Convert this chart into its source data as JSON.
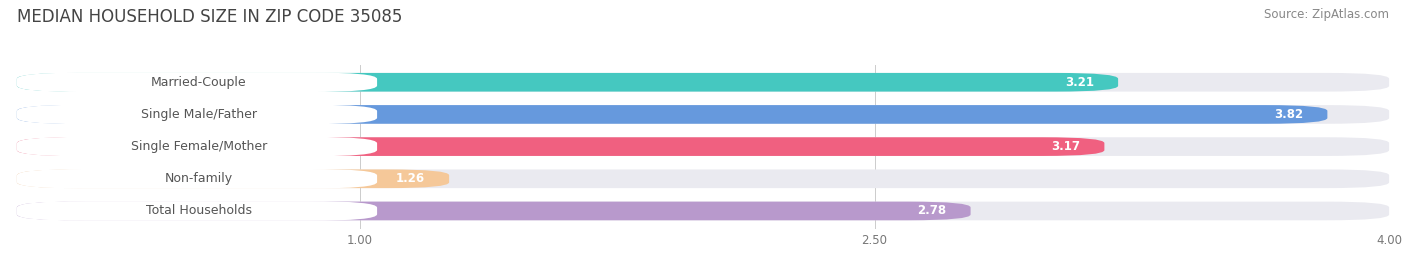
{
  "title": "MEDIAN HOUSEHOLD SIZE IN ZIP CODE 35085",
  "source": "Source: ZipAtlas.com",
  "categories": [
    "Married-Couple",
    "Single Male/Father",
    "Single Female/Mother",
    "Non-family",
    "Total Households"
  ],
  "values": [
    3.21,
    3.82,
    3.17,
    1.26,
    2.78
  ],
  "bar_colors": [
    "#45C8C0",
    "#6699DD",
    "#F06080",
    "#F5C899",
    "#B899CC"
  ],
  "bar_bg_color": "#EAEAF0",
  "xlim_max": 4.0,
  "xticks": [
    1.0,
    2.5,
    4.0
  ],
  "background_color": "#FFFFFF",
  "title_fontsize": 12,
  "source_fontsize": 8.5,
  "label_fontsize": 9,
  "value_fontsize": 8.5,
  "bar_height": 0.58
}
